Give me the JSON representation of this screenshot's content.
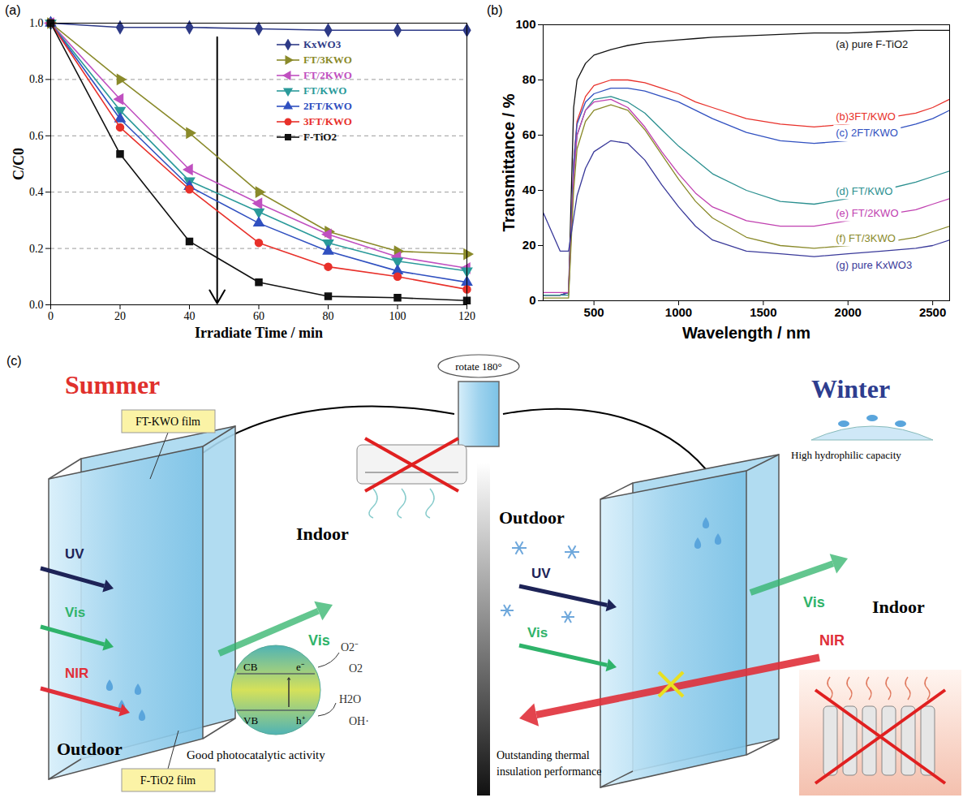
{
  "chart_data": [
    {
      "type": "line",
      "panel": "(a)",
      "xlabel": "Irradiate Time / min",
      "ylabel": "C/C0",
      "x": [
        0,
        20,
        40,
        60,
        80,
        100,
        120
      ],
      "xlim": [
        0,
        120
      ],
      "xticks": [
        0,
        20,
        40,
        60,
        80,
        100,
        120
      ],
      "ylim": [
        0,
        1
      ],
      "yticks": [
        {
          "value": 0,
          "label": "0.0"
        },
        {
          "value": 0.2,
          "label": "0.2"
        },
        {
          "value": 0.4,
          "label": "0.4"
        },
        {
          "value": 0.6,
          "label": "0.6"
        },
        {
          "value": 0.8,
          "label": "0.8"
        },
        {
          "value": 1,
          "label": "1.0"
        }
      ],
      "grid": true,
      "legend": "top-right",
      "series": [
        {
          "name": "KxWO3",
          "color": "#2e3a87",
          "marker": "diamond",
          "values": [
            1.0,
            0.985,
            0.985,
            0.98,
            0.975,
            0.975,
            0.975
          ]
        },
        {
          "name": "FT/3KWO",
          "color": "#8a8a2a",
          "marker": "triangle-right",
          "values": [
            1.0,
            0.8,
            0.61,
            0.4,
            0.26,
            0.19,
            0.18
          ]
        },
        {
          "name": "FT/2KWO",
          "color": "#c050c0",
          "marker": "triangle-left",
          "values": [
            1.0,
            0.73,
            0.48,
            0.36,
            0.25,
            0.17,
            0.13
          ]
        },
        {
          "name": "FT/KWO",
          "color": "#2a9a9a",
          "marker": "triangle-down",
          "values": [
            1.0,
            0.69,
            0.44,
            0.33,
            0.22,
            0.155,
            0.12
          ]
        },
        {
          "name": "2FT/KWO",
          "color": "#3050c0",
          "marker": "triangle-up",
          "values": [
            1.0,
            0.66,
            0.42,
            0.29,
            0.19,
            0.12,
            0.08
          ]
        },
        {
          "name": "3FT/KWO",
          "color": "#e8302a",
          "marker": "circle",
          "values": [
            1.0,
            0.63,
            0.41,
            0.22,
            0.135,
            0.1,
            0.055
          ]
        },
        {
          "name": "F-TiO2",
          "color": "#111111",
          "marker": "square",
          "values": [
            1.0,
            0.535,
            0.225,
            0.08,
            0.03,
            0.025,
            0.015
          ]
        }
      ]
    },
    {
      "type": "line",
      "panel": "(b)",
      "xlabel": "Wavelength / nm",
      "ylabel": "Transmittance / %",
      "x": [
        200,
        300,
        350,
        380,
        400,
        450,
        500,
        600,
        700,
        800,
        900,
        1000,
        1100,
        1200,
        1400,
        1600,
        1800,
        2000,
        2200,
        2400,
        2500,
        2600
      ],
      "xlim": [
        200,
        2600
      ],
      "xticks": [
        500,
        1000,
        1500,
        2000,
        2500
      ],
      "ylim": [
        0,
        100
      ],
      "yticks": [
        0,
        20,
        40,
        60,
        80,
        100
      ],
      "grid": false,
      "series": [
        {
          "name": "(a) pure F-TiO2",
          "color": "#111111",
          "values": [
            2,
            2,
            3,
            70,
            80,
            86,
            89,
            91,
            92.5,
            93.5,
            94,
            94.5,
            95,
            95.5,
            96,
            96.5,
            97,
            97,
            97.5,
            98,
            98,
            98
          ]
        },
        {
          "name": "(b)3FT/KWO",
          "color": "#e8302a",
          "values": [
            2,
            2,
            3,
            50,
            65,
            74,
            78,
            80,
            80,
            79,
            77,
            75,
            72,
            70,
            66,
            64,
            63,
            64,
            66,
            68,
            70,
            73
          ]
        },
        {
          "name": "(c) 2FT/KWO",
          "color": "#3050c0",
          "values": [
            2,
            2,
            3,
            50,
            64,
            72,
            75,
            77,
            77,
            76,
            74,
            72,
            69,
            66,
            61,
            58,
            57,
            58,
            61,
            64,
            66,
            69
          ]
        },
        {
          "name": "(d) FT/KWO",
          "color": "#2a8f8f",
          "values": [
            2,
            2,
            2,
            45,
            60,
            69,
            73,
            74,
            72,
            68,
            62,
            56,
            51,
            46,
            40,
            36,
            35,
            37,
            40,
            43,
            45,
            47
          ]
        },
        {
          "name": "(e) FT/2KWO",
          "color": "#c040b0",
          "values": [
            3,
            3,
            3,
            45,
            60,
            69,
            72,
            73,
            70,
            63,
            54,
            46,
            39,
            34,
            29,
            27,
            27,
            29,
            31,
            33,
            35,
            37
          ]
        },
        {
          "name": "(f) FT/3KWO",
          "color": "#8a8a2a",
          "values": [
            1,
            1,
            1,
            40,
            55,
            65,
            69,
            71,
            69,
            62,
            53,
            44,
            36,
            30,
            23,
            20,
            19,
            20,
            21,
            23,
            25,
            27
          ]
        },
        {
          "name": "(g) pure KxWO3",
          "color": "#3a3a9a",
          "values": [
            32,
            18,
            18,
            30,
            38,
            48,
            54,
            58,
            57,
            51,
            42,
            34,
            27,
            22,
            18,
            17,
            16,
            17,
            18,
            19,
            20,
            22
          ]
        }
      ]
    }
  ],
  "diagram": {
    "panel": "(c)",
    "rotate": "rotate 180°",
    "summer": {
      "title": "Summer",
      "film_top": "FT-KWO film",
      "film_bottom": "F-TiO2 film",
      "indoor": "Indoor",
      "outdoor": "Outdoor",
      "incoming": [
        "UV",
        "Vis",
        "NIR"
      ],
      "transmitted": "Vis",
      "caption": "Good photocatalytic activity",
      "band": {
        "cb": "CB",
        "vb": "VB",
        "electron": "e⁻",
        "hole": "h⁺",
        "o2_radical": "O2⁻",
        "o2": "O2",
        "h2o": "H2O",
        "oh": "OH·"
      }
    },
    "winter": {
      "title": "Winter",
      "outdoor": "Outdoor",
      "indoor": "Indoor",
      "incoming": [
        "UV",
        "Vis"
      ],
      "transmitted": "Vis",
      "blocked": "NIR",
      "caption_top": "High hydrophilic capacity",
      "caption_bottom": "Outstanding thermal insulation performance"
    }
  }
}
